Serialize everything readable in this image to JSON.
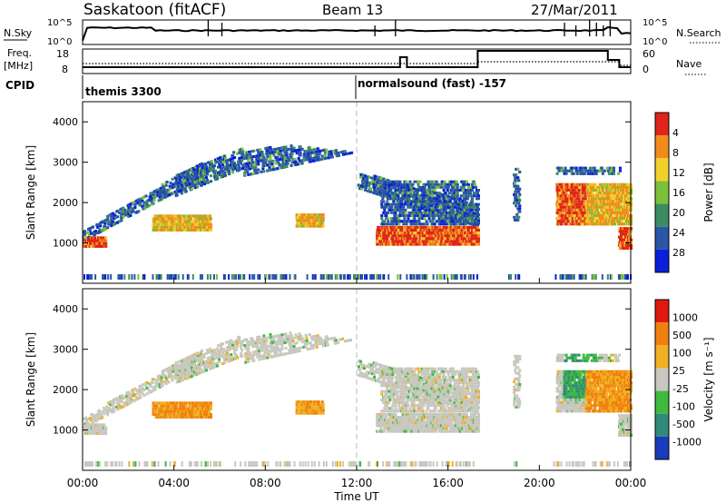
{
  "header": {
    "station": "Saskatoon (fitACF)",
    "beam": "Beam 13",
    "date": "27/Mar/2011"
  },
  "top_panels": {
    "nsky_label": "N.Sky",
    "nsky_ticks": [
      "10^5",
      "10^0"
    ],
    "nsearch_label": "N.Search",
    "nsearch_ticks": [
      "10^5",
      "10^0"
    ],
    "freq_label_line1": "Freq.",
    "freq_label_line2": "[MHz]",
    "freq_ticks": [
      "18",
      "8"
    ],
    "nave_label": "Nave",
    "nave_ticks": [
      "60",
      "0"
    ],
    "cpid_label": "CPID",
    "cpid_segments": [
      {
        "start_hour": 0,
        "text": "themis 3300"
      },
      {
        "start_hour": 12,
        "text": "normalsound (fast) -157"
      }
    ]
  },
  "chart_data": [
    {
      "type": "heatmap",
      "title": "",
      "ylabel": "Slant Range [km]",
      "xlabel": "Time UT",
      "ylim": [
        0,
        4500
      ],
      "y_ticks": [
        1000,
        2000,
        3000,
        4000
      ],
      "colorbar_label": "Power [dB]",
      "colorbar_ticks": [
        "4",
        "8",
        "12",
        "16",
        "20",
        "24",
        "28"
      ],
      "colorbar_colors": [
        "#0a1fd9",
        "#2b55a6",
        "#3b8c63",
        "#7ac13a",
        "#f2d02a",
        "#f08c1c",
        "#e0241a"
      ]
    },
    {
      "type": "heatmap",
      "title": "",
      "ylabel": "Slant Range [km]",
      "xlabel": "Time UT",
      "ylim": [
        0,
        4500
      ],
      "y_ticks": [
        1000,
        2000,
        3000,
        4000
      ],
      "colorbar_label": "Velocity [m s⁻¹]",
      "colorbar_ticks": [
        "1000",
        "500",
        "100",
        "25",
        "-25",
        "-100",
        "-500",
        "-1000"
      ],
      "colorbar_colors": [
        "#1b3bbd",
        "#2f8a7a",
        "#3fba3f",
        "#c8c8c0",
        "#f0b020",
        "#f08010",
        "#e01a10"
      ]
    }
  ],
  "x_axis": {
    "label": "Time UT",
    "ticks": [
      "00:00",
      "04:00",
      "08:00",
      "12:00",
      "16:00",
      "20:00",
      "00:00"
    ],
    "hours": [
      0,
      4,
      8,
      12,
      16,
      20,
      24
    ]
  }
}
